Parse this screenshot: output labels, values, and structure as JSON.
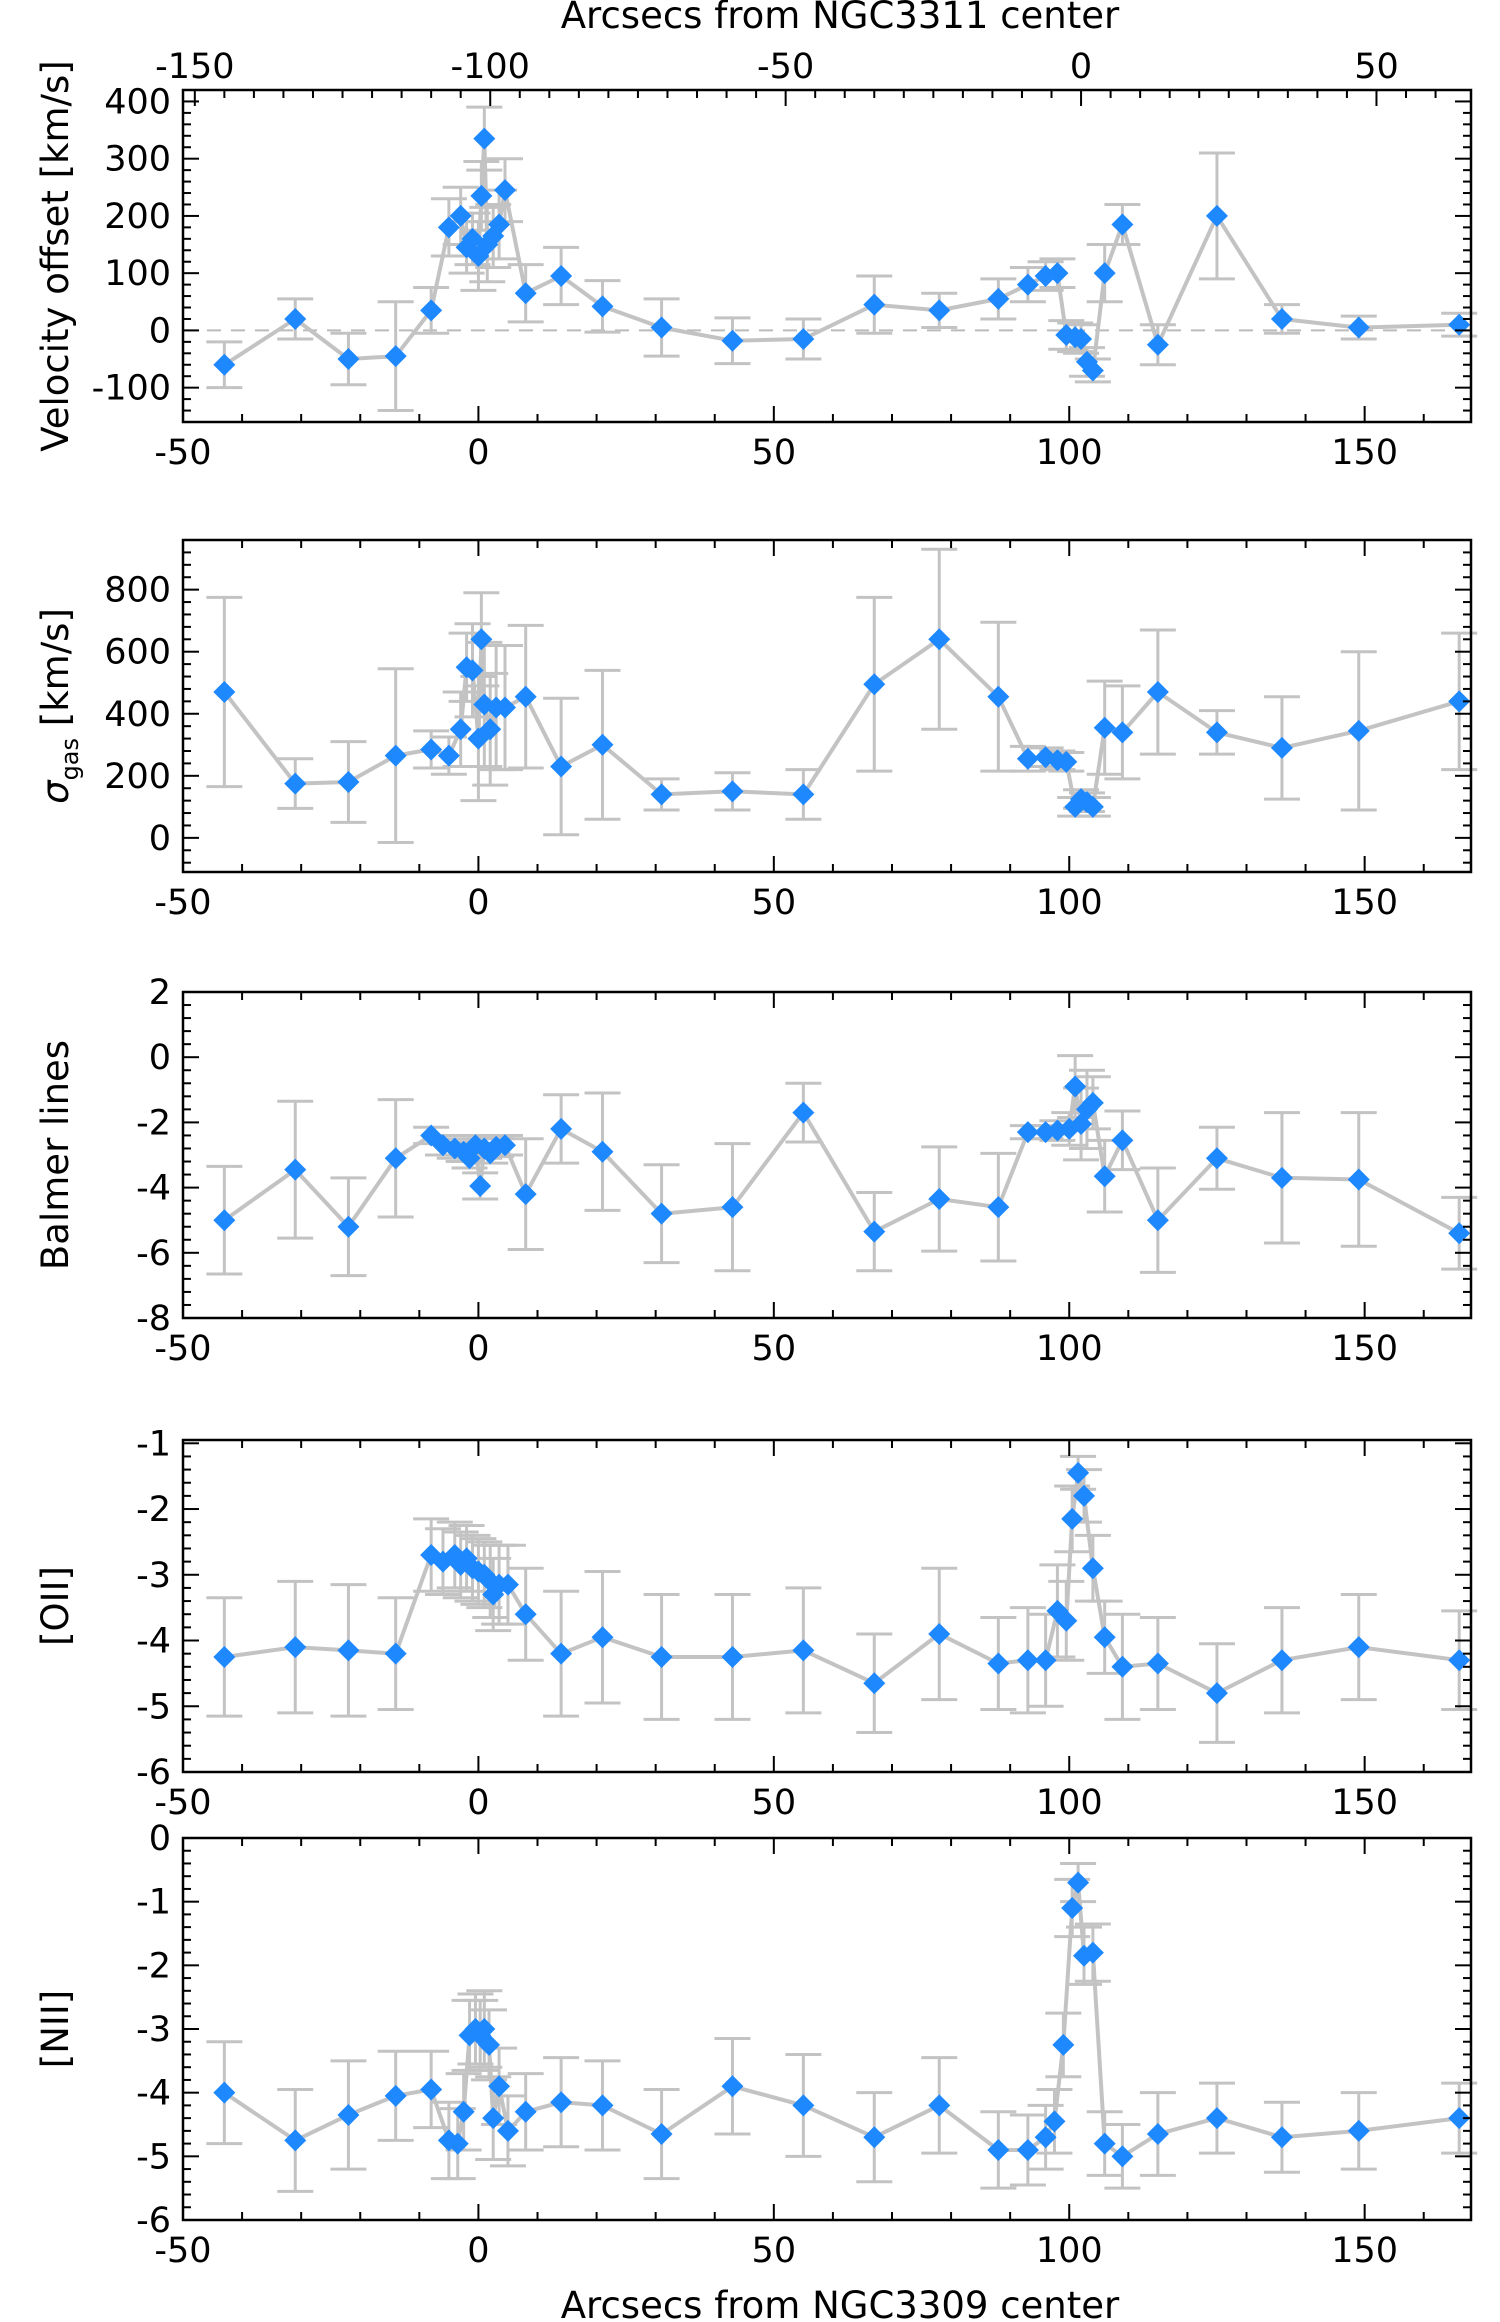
{
  "figure": {
    "top_axis_label": "Arcsecs from NGC3311 center",
    "bottom_axis_label": "Arcsecs from NGC3309 center",
    "top_ticks": [
      -150,
      -100,
      -50,
      0,
      50
    ],
    "colors": {
      "marker": "#1e88ff",
      "line": "#c3c3c3",
      "errorbar": "#c3c3c3",
      "zero_line": "#bbbbbb",
      "frame": "#000000"
    }
  },
  "chart_data": [
    {
      "type": "scatter",
      "ylabel": "Velocity offset [km/s]",
      "xlim": [
        -50,
        168
      ],
      "ylim": [
        -160,
        420
      ],
      "xticks": [
        -50,
        0,
        50,
        100,
        150
      ],
      "yticks": [
        -100,
        0,
        100,
        200,
        300,
        400
      ],
      "zero_line": true,
      "points": [
        {
          "x": -43,
          "y": -60,
          "err": 40
        },
        {
          "x": -31,
          "y": 20,
          "err": 35
        },
        {
          "x": -22,
          "y": -50,
          "err": 45
        },
        {
          "x": -14,
          "y": -45,
          "err": 95
        },
        {
          "x": -8,
          "y": 35,
          "err": 40
        },
        {
          "x": -5,
          "y": 180,
          "err": 50
        },
        {
          "x": -3,
          "y": 200,
          "err": 50
        },
        {
          "x": -2,
          "y": 145,
          "err": 45
        },
        {
          "x": -1,
          "y": 160,
          "err": 45
        },
        {
          "x": 0,
          "y": 130,
          "err": 60
        },
        {
          "x": 0.5,
          "y": 235,
          "err": 60
        },
        {
          "x": 1,
          "y": 335,
          "err": 55
        },
        {
          "x": 1.5,
          "y": 150,
          "err": 65
        },
        {
          "x": 2.5,
          "y": 165,
          "err": 55
        },
        {
          "x": 3.5,
          "y": 185,
          "err": 60
        },
        {
          "x": 4.5,
          "y": 245,
          "err": 55
        },
        {
          "x": 8,
          "y": 65,
          "err": 50
        },
        {
          "x": 14,
          "y": 95,
          "err": 50
        },
        {
          "x": 21,
          "y": 42,
          "err": 45
        },
        {
          "x": 31,
          "y": 5,
          "err": 50
        },
        {
          "x": 43,
          "y": -18,
          "err": 40
        },
        {
          "x": 55,
          "y": -15,
          "err": 35
        },
        {
          "x": 67,
          "y": 45,
          "err": 50
        },
        {
          "x": 78,
          "y": 35,
          "err": 30
        },
        {
          "x": 88,
          "y": 55,
          "err": 35
        },
        {
          "x": 93,
          "y": 80,
          "err": 30
        },
        {
          "x": 96,
          "y": 95,
          "err": 25
        },
        {
          "x": 98,
          "y": 100,
          "err": 25
        },
        {
          "x": 99.5,
          "y": -8,
          "err": 25
        },
        {
          "x": 101,
          "y": -12,
          "err": 25
        },
        {
          "x": 102,
          "y": -15,
          "err": 25
        },
        {
          "x": 103,
          "y": -55,
          "err": 25
        },
        {
          "x": 104,
          "y": -70,
          "err": 20
        },
        {
          "x": 106,
          "y": 100,
          "err": 50
        },
        {
          "x": 109,
          "y": 185,
          "err": 35
        },
        {
          "x": 115,
          "y": -25,
          "err": 35
        },
        {
          "x": 125,
          "y": 200,
          "err": 110
        },
        {
          "x": 136,
          "y": 20,
          "err": 25
        },
        {
          "x": 149,
          "y": 5,
          "err": 20
        },
        {
          "x": 166,
          "y": 10,
          "err": 20
        }
      ]
    },
    {
      "type": "scatter",
      "ylabel": "σgas [km/s]",
      "ylabel_main": "σ",
      "ylabel_sub": "gas",
      "ylabel_unit": " [km/s]",
      "xlim": [
        -50,
        168
      ],
      "ylim": [
        -110,
        960
      ],
      "xticks": [
        -50,
        0,
        50,
        100,
        150
      ],
      "yticks": [
        0,
        200,
        400,
        600,
        800
      ],
      "zero_line": false,
      "points": [
        {
          "x": -43,
          "y": 470,
          "err": 305
        },
        {
          "x": -31,
          "y": 175,
          "err": 80
        },
        {
          "x": -22,
          "y": 180,
          "err": 130
        },
        {
          "x": -14,
          "y": 265,
          "err": 280
        },
        {
          "x": -8,
          "y": 285,
          "err": 60
        },
        {
          "x": -5,
          "y": 265,
          "err": 60
        },
        {
          "x": -3,
          "y": 350,
          "err": 120
        },
        {
          "x": -2,
          "y": 550,
          "err": 110
        },
        {
          "x": -1,
          "y": 540,
          "err": 150
        },
        {
          "x": 0,
          "y": 320,
          "err": 200
        },
        {
          "x": 0.5,
          "y": 640,
          "err": 150
        },
        {
          "x": 1,
          "y": 430,
          "err": 200
        },
        {
          "x": 2,
          "y": 350,
          "err": 180
        },
        {
          "x": 3,
          "y": 420,
          "err": 200
        },
        {
          "x": 4.5,
          "y": 420,
          "err": 200
        },
        {
          "x": 8,
          "y": 455,
          "err": 230
        },
        {
          "x": 14,
          "y": 230,
          "err": 220
        },
        {
          "x": 21,
          "y": 300,
          "err": 240
        },
        {
          "x": 31,
          "y": 140,
          "err": 50
        },
        {
          "x": 43,
          "y": 150,
          "err": 60
        },
        {
          "x": 55,
          "y": 140,
          "err": 80
        },
        {
          "x": 67,
          "y": 495,
          "err": 280
        },
        {
          "x": 78,
          "y": 640,
          "err": 290
        },
        {
          "x": 88,
          "y": 455,
          "err": 240
        },
        {
          "x": 93,
          "y": 255,
          "err": 40
        },
        {
          "x": 96,
          "y": 260,
          "err": 30
        },
        {
          "x": 98,
          "y": 250,
          "err": 30
        },
        {
          "x": 99.5,
          "y": 245,
          "err": 30
        },
        {
          "x": 101,
          "y": 100,
          "err": 30
        },
        {
          "x": 102,
          "y": 125,
          "err": 30
        },
        {
          "x": 103,
          "y": 115,
          "err": 30
        },
        {
          "x": 104,
          "y": 100,
          "err": 30
        },
        {
          "x": 106,
          "y": 355,
          "err": 150
        },
        {
          "x": 109,
          "y": 340,
          "err": 150
        },
        {
          "x": 115,
          "y": 470,
          "err": 200
        },
        {
          "x": 125,
          "y": 340,
          "err": 70
        },
        {
          "x": 136,
          "y": 290,
          "err": 165
        },
        {
          "x": 149,
          "y": 345,
          "err": 255
        },
        {
          "x": 166,
          "y": 440,
          "err": 220
        }
      ]
    },
    {
      "type": "scatter",
      "ylabel": "Balmer lines",
      "xlim": [
        -50,
        168
      ],
      "ylim": [
        -8,
        2
      ],
      "xticks": [
        -50,
        0,
        50,
        100,
        150
      ],
      "yticks": [
        -8,
        -6,
        -4,
        -2,
        0,
        2
      ],
      "zero_line": false,
      "points": [
        {
          "x": -43,
          "y": -5.0,
          "err": 1.65
        },
        {
          "x": -31,
          "y": -3.45,
          "err": 2.1
        },
        {
          "x": -22,
          "y": -5.2,
          "err": 1.5
        },
        {
          "x": -14,
          "y": -3.1,
          "err": 1.8
        },
        {
          "x": -8,
          "y": -2.4,
          "err": 0.25
        },
        {
          "x": -6,
          "y": -2.7,
          "err": 0.3
        },
        {
          "x": -4,
          "y": -2.8,
          "err": 0.3
        },
        {
          "x": -2.5,
          "y": -2.9,
          "err": 0.3
        },
        {
          "x": -1.5,
          "y": -3.1,
          "err": 0.3
        },
        {
          "x": -0.5,
          "y": -2.7,
          "err": 0.3
        },
        {
          "x": 0.3,
          "y": -3.95,
          "err": 0.4
        },
        {
          "x": 1,
          "y": -2.8,
          "err": 0.3
        },
        {
          "x": 2,
          "y": -2.95,
          "err": 0.3
        },
        {
          "x": 3,
          "y": -2.75,
          "err": 0.3
        },
        {
          "x": 4.5,
          "y": -2.7,
          "err": 0.3
        },
        {
          "x": 8,
          "y": -4.2,
          "err": 1.7
        },
        {
          "x": 14,
          "y": -2.2,
          "err": 1.05
        },
        {
          "x": 21,
          "y": -2.9,
          "err": 1.8
        },
        {
          "x": 31,
          "y": -4.8,
          "err": 1.5
        },
        {
          "x": 43,
          "y": -4.6,
          "err": 1.95
        },
        {
          "x": 55,
          "y": -1.7,
          "err": 0.9
        },
        {
          "x": 67,
          "y": -5.35,
          "err": 1.2
        },
        {
          "x": 78,
          "y": -4.35,
          "err": 1.6
        },
        {
          "x": 88,
          "y": -4.6,
          "err": 1.65
        },
        {
          "x": 93,
          "y": -2.3,
          "err": 0.2
        },
        {
          "x": 96,
          "y": -2.3,
          "err": 0.2
        },
        {
          "x": 98,
          "y": -2.25,
          "err": 0.3
        },
        {
          "x": 100,
          "y": -2.2,
          "err": 0.5
        },
        {
          "x": 101,
          "y": -0.9,
          "err": 0.95
        },
        {
          "x": 102,
          "y": -2.05,
          "err": 1.1
        },
        {
          "x": 103,
          "y": -1.6,
          "err": 1.2
        },
        {
          "x": 104,
          "y": -1.4,
          "err": 0.8
        },
        {
          "x": 106,
          "y": -3.65,
          "err": 1.1
        },
        {
          "x": 109,
          "y": -2.55,
          "err": 0.9
        },
        {
          "x": 115,
          "y": -5.0,
          "err": 1.6
        },
        {
          "x": 125,
          "y": -3.1,
          "err": 0.95
        },
        {
          "x": 136,
          "y": -3.7,
          "err": 2.0
        },
        {
          "x": 149,
          "y": -3.75,
          "err": 2.05
        },
        {
          "x": 166,
          "y": -5.4,
          "err": 1.1
        }
      ]
    },
    {
      "type": "scatter",
      "ylabel": "[OII]",
      "xlim": [
        -50,
        168
      ],
      "ylim": [
        -6,
        -0.95
      ],
      "xticks": [
        -50,
        0,
        50,
        100,
        150
      ],
      "yticks": [
        -6,
        -5,
        -4,
        -3,
        -2,
        -1
      ],
      "zero_line": false,
      "points": [
        {
          "x": -43,
          "y": -4.25,
          "err": 0.9
        },
        {
          "x": -31,
          "y": -4.1,
          "err": 1.0
        },
        {
          "x": -22,
          "y": -4.15,
          "err": 1.0
        },
        {
          "x": -14,
          "y": -4.2,
          "err": 0.85
        },
        {
          "x": -8,
          "y": -2.7,
          "err": 0.55
        },
        {
          "x": -6,
          "y": -2.8,
          "err": 0.5
        },
        {
          "x": -4,
          "y": -2.7,
          "err": 0.5
        },
        {
          "x": -3,
          "y": -2.85,
          "err": 0.5
        },
        {
          "x": -2,
          "y": -2.75,
          "err": 0.5
        },
        {
          "x": -1,
          "y": -2.9,
          "err": 0.5
        },
        {
          "x": 0,
          "y": -2.95,
          "err": 0.5
        },
        {
          "x": 1,
          "y": -3.0,
          "err": 0.5
        },
        {
          "x": 2,
          "y": -3.1,
          "err": 0.55
        },
        {
          "x": 2.5,
          "y": -3.3,
          "err": 0.55
        },
        {
          "x": 3.5,
          "y": -3.15,
          "err": 0.6
        },
        {
          "x": 5,
          "y": -3.15,
          "err": 0.6
        },
        {
          "x": 8,
          "y": -3.6,
          "err": 0.7
        },
        {
          "x": 14,
          "y": -4.2,
          "err": 0.95
        },
        {
          "x": 21,
          "y": -3.95,
          "err": 1.0
        },
        {
          "x": 31,
          "y": -4.25,
          "err": 0.95
        },
        {
          "x": 43,
          "y": -4.25,
          "err": 0.95
        },
        {
          "x": 55,
          "y": -4.15,
          "err": 0.95
        },
        {
          "x": 67,
          "y": -4.65,
          "err": 0.75
        },
        {
          "x": 78,
          "y": -3.9,
          "err": 1.0
        },
        {
          "x": 88,
          "y": -4.35,
          "err": 0.7
        },
        {
          "x": 93,
          "y": -4.3,
          "err": 0.8
        },
        {
          "x": 96,
          "y": -4.3,
          "err": 0.7
        },
        {
          "x": 98,
          "y": -3.55,
          "err": 0.7
        },
        {
          "x": 99.5,
          "y": -3.7,
          "err": 0.6
        },
        {
          "x": 100.5,
          "y": -2.15,
          "err": 0.5
        },
        {
          "x": 101.5,
          "y": -1.45,
          "err": 0.25
        },
        {
          "x": 102.5,
          "y": -1.8,
          "err": 0.4
        },
        {
          "x": 104,
          "y": -2.9,
          "err": 0.5
        },
        {
          "x": 106,
          "y": -3.95,
          "err": 0.55
        },
        {
          "x": 109,
          "y": -4.4,
          "err": 0.8
        },
        {
          "x": 115,
          "y": -4.35,
          "err": 0.7
        },
        {
          "x": 125,
          "y": -4.8,
          "err": 0.75
        },
        {
          "x": 136,
          "y": -4.3,
          "err": 0.8
        },
        {
          "x": 149,
          "y": -4.1,
          "err": 0.8
        },
        {
          "x": 166,
          "y": -4.3,
          "err": 0.75
        }
      ]
    },
    {
      "type": "scatter",
      "ylabel": "[NII]",
      "xlim": [
        -50,
        168
      ],
      "ylim": [
        -6,
        0
      ],
      "xticks": [
        -50,
        0,
        50,
        100,
        150
      ],
      "yticks": [
        -6,
        -5,
        -4,
        -3,
        -2,
        -1,
        0
      ],
      "zero_line": false,
      "points": [
        {
          "x": -43,
          "y": -4.0,
          "err": 0.8
        },
        {
          "x": -31,
          "y": -4.75,
          "err": 0.8
        },
        {
          "x": -22,
          "y": -4.35,
          "err": 0.85
        },
        {
          "x": -14,
          "y": -4.05,
          "err": 0.7
        },
        {
          "x": -8,
          "y": -3.95,
          "err": 0.6
        },
        {
          "x": -5,
          "y": -4.75,
          "err": 0.6
        },
        {
          "x": -3.5,
          "y": -4.8,
          "err": 0.55
        },
        {
          "x": -2.5,
          "y": -4.3,
          "err": 0.6
        },
        {
          "x": -1.5,
          "y": -3.1,
          "err": 0.55
        },
        {
          "x": -0.5,
          "y": -3.0,
          "err": 0.55
        },
        {
          "x": 0.3,
          "y": -3.1,
          "err": 0.55
        },
        {
          "x": 1,
          "y": -3.0,
          "err": 0.6
        },
        {
          "x": 1.8,
          "y": -3.25,
          "err": 0.55
        },
        {
          "x": 2.5,
          "y": -4.4,
          "err": 0.65
        },
        {
          "x": 3.5,
          "y": -3.9,
          "err": 0.6
        },
        {
          "x": 5,
          "y": -4.6,
          "err": 0.55
        },
        {
          "x": 8,
          "y": -4.3,
          "err": 0.6
        },
        {
          "x": 14,
          "y": -4.15,
          "err": 0.7
        },
        {
          "x": 21,
          "y": -4.2,
          "err": 0.7
        },
        {
          "x": 31,
          "y": -4.65,
          "err": 0.7
        },
        {
          "x": 43,
          "y": -3.9,
          "err": 0.75
        },
        {
          "x": 55,
          "y": -4.2,
          "err": 0.8
        },
        {
          "x": 67,
          "y": -4.7,
          "err": 0.7
        },
        {
          "x": 78,
          "y": -4.2,
          "err": 0.75
        },
        {
          "x": 88,
          "y": -4.9,
          "err": 0.6
        },
        {
          "x": 93,
          "y": -4.9,
          "err": 0.55
        },
        {
          "x": 96,
          "y": -4.7,
          "err": 0.5
        },
        {
          "x": 97.5,
          "y": -4.45,
          "err": 0.5
        },
        {
          "x": 99,
          "y": -3.25,
          "err": 0.5
        },
        {
          "x": 100.5,
          "y": -1.1,
          "err": 0.45
        },
        {
          "x": 101.5,
          "y": -0.7,
          "err": 0.3
        },
        {
          "x": 102.5,
          "y": -1.85,
          "err": 0.45
        },
        {
          "x": 104,
          "y": -1.8,
          "err": 0.45
        },
        {
          "x": 106,
          "y": -4.8,
          "err": 0.5
        },
        {
          "x": 109,
          "y": -5.0,
          "err": 0.5
        },
        {
          "x": 115,
          "y": -4.65,
          "err": 0.65
        },
        {
          "x": 125,
          "y": -4.4,
          "err": 0.55
        },
        {
          "x": 136,
          "y": -4.7,
          "err": 0.55
        },
        {
          "x": 149,
          "y": -4.6,
          "err": 0.6
        },
        {
          "x": 166,
          "y": -4.4,
          "err": 0.55
        }
      ]
    }
  ]
}
